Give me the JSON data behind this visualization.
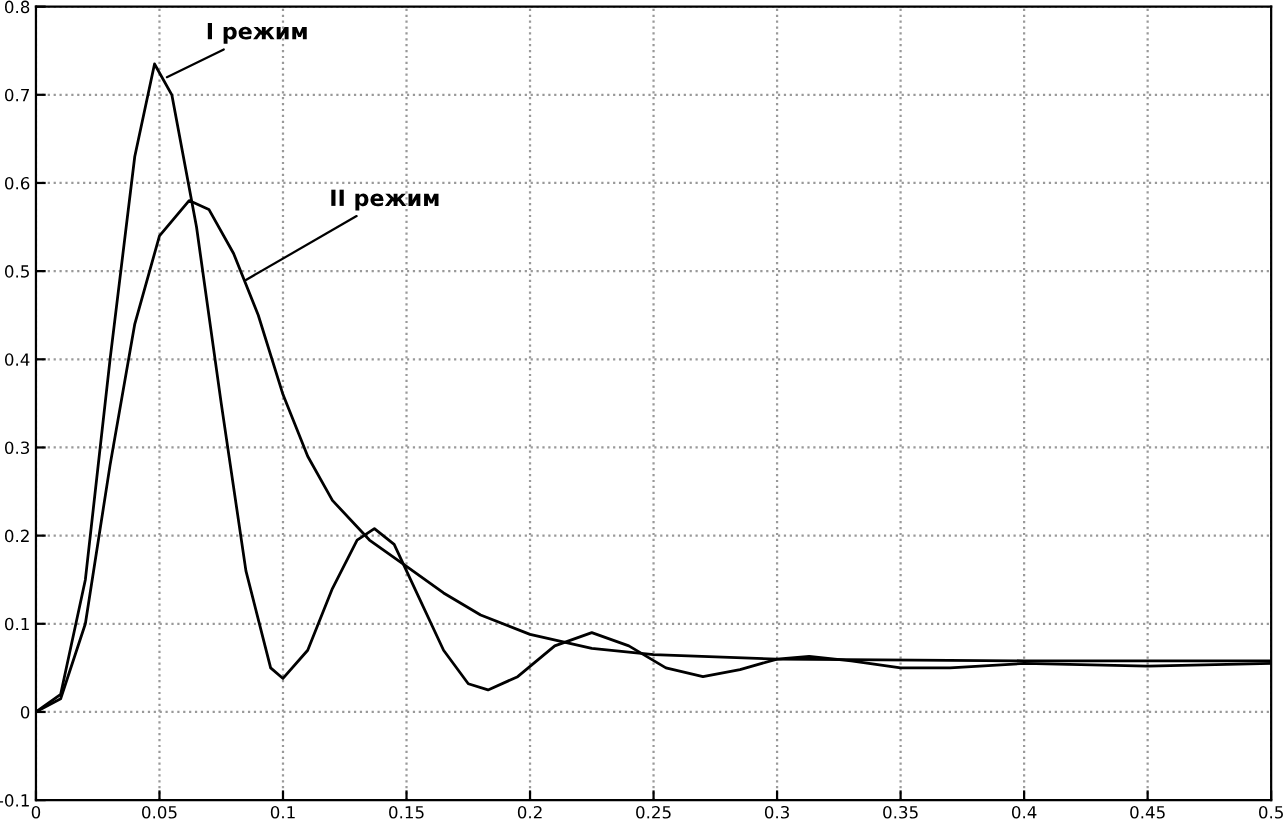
{
  "chart_data": {
    "type": "line",
    "series": [
      {
        "color": "#000000",
        "x": [
          0,
          0.01,
          0.02,
          0.03,
          0.04,
          0.048,
          0.055,
          0.065,
          0.075,
          0.085,
          0.095,
          0.1,
          0.11,
          0.12,
          0.13,
          0.137,
          0.145,
          0.155,
          0.165,
          0.175,
          0.183,
          0.195,
          0.21,
          0.225,
          0.24,
          0.255,
          0.27,
          0.285,
          0.3,
          0.313,
          0.33,
          0.35,
          0.37,
          0.4,
          0.45,
          0.5
        ],
        "values": [
          0,
          0.02,
          0.15,
          0.4,
          0.63,
          0.735,
          0.7,
          0.55,
          0.35,
          0.16,
          0.05,
          0.038,
          0.07,
          0.14,
          0.195,
          0.208,
          0.19,
          0.13,
          0.07,
          0.032,
          0.025,
          0.04,
          0.075,
          0.09,
          0.075,
          0.05,
          0.04,
          0.048,
          0.06,
          0.063,
          0.058,
          0.05,
          0.05,
          0.055,
          0.052,
          0.055
        ]
      },
      {
        "color": "#000000",
        "x": [
          0,
          0.01,
          0.02,
          0.03,
          0.04,
          0.05,
          0.062,
          0.07,
          0.08,
          0.09,
          0.1,
          0.11,
          0.12,
          0.135,
          0.15,
          0.165,
          0.18,
          0.2,
          0.225,
          0.25,
          0.3,
          0.4,
          0.5
        ],
        "values": [
          0,
          0.015,
          0.1,
          0.28,
          0.44,
          0.54,
          0.58,
          0.57,
          0.52,
          0.45,
          0.36,
          0.29,
          0.24,
          0.195,
          0.165,
          0.135,
          0.11,
          0.088,
          0.072,
          0.065,
          0.06,
          0.058,
          0.058
        ]
      }
    ],
    "annotations": [
      {
        "text": "I режим",
        "x": 0.053,
        "y": 0.72
      },
      {
        "text": "II режим",
        "x": 0.085,
        "y": 0.49
      }
    ],
    "xlim": [
      0,
      0.5
    ],
    "xticks": [
      0,
      0.05,
      0.1,
      0.15,
      0.2,
      0.25,
      0.3,
      0.35,
      0.4,
      0.45,
      0.5
    ],
    "ylim": [
      -0.1,
      0.8
    ],
    "yticks": [
      -0.1,
      0,
      0.1,
      0.2,
      0.3,
      0.4,
      0.5,
      0.6,
      0.7,
      0.8
    ],
    "grid": true,
    "line_style": "solid",
    "marker": "none"
  }
}
